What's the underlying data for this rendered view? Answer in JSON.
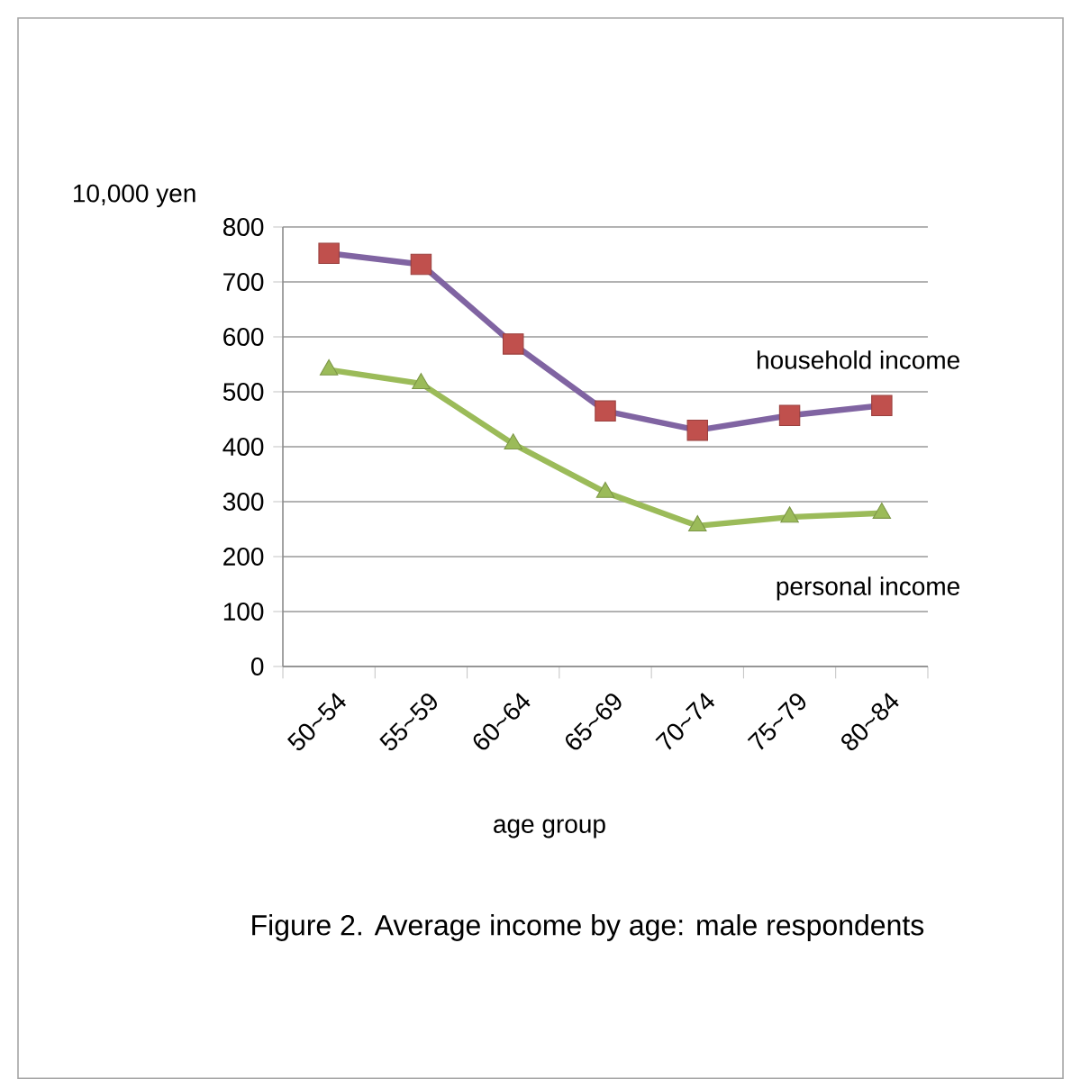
{
  "chart_data": {
    "type": "line",
    "title": "Figure 2. Average income by age: male respondents",
    "xlabel": "age group",
    "ylabel": "10,000 yen",
    "categories": [
      "50~54",
      "55~59",
      "60~64",
      "65~69",
      "70~74",
      "75~79",
      "80~84"
    ],
    "series": [
      {
        "name": "household income",
        "color": "#8064a2",
        "marker": "square",
        "colors": [
          "#c0504d",
          "#c0504d",
          "#c0504d",
          "#c0504d",
          "#c0504d",
          "#c0504d",
          "#c0504d"
        ],
        "values": [
          752,
          732,
          587,
          465,
          430,
          457,
          475
        ]
      },
      {
        "name": "personal income",
        "color": "#9bbb59",
        "marker": "triangle",
        "colors": [
          "#9bbb59",
          "#9bbb59",
          "#9bbb59",
          "#9bbb59",
          "#9bbb59",
          "#9bbb59",
          "#9bbb59"
        ],
        "values": [
          540,
          515,
          405,
          317,
          256,
          272,
          279
        ]
      }
    ],
    "ylim": [
      0,
      800
    ],
    "yticks": [
      0,
      100,
      200,
      300,
      400,
      500,
      600,
      700,
      800
    ],
    "grid": "y",
    "legend": false
  }
}
